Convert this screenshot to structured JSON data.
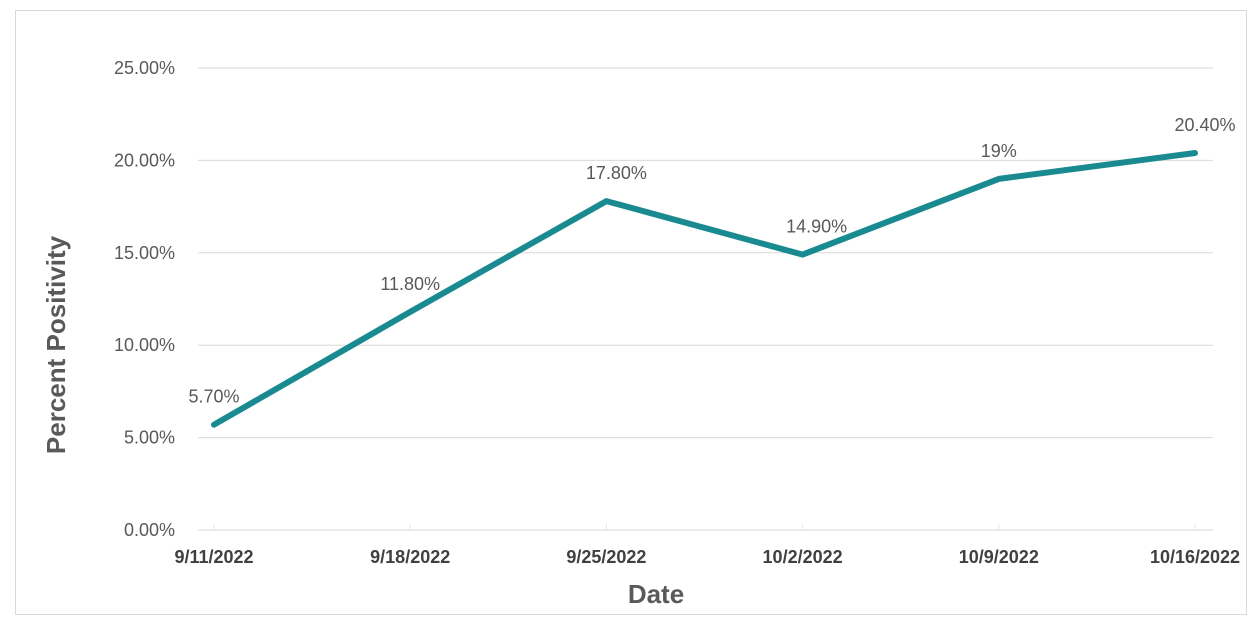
{
  "chart_data": {
    "type": "line",
    "title": "",
    "xlabel": "Date",
    "ylabel": "Percent Positivity",
    "categories": [
      "9/11/2022",
      "9/18/2022",
      "9/25/2022",
      "10/2/2022",
      "10/9/2022",
      "10/16/2022"
    ],
    "series": [
      {
        "values": [
          5.7,
          11.8,
          17.8,
          14.9,
          19.0,
          20.4
        ],
        "data_labels": [
          "5.70%",
          "11.80%",
          "17.80%",
          "14.90%",
          "19%",
          "20.40%"
        ],
        "color": "#1a8a91"
      }
    ],
    "ylim": [
      0,
      25
    ],
    "yticks": [
      0,
      5,
      10,
      15,
      20,
      25
    ],
    "ytick_labels": [
      "0.00%",
      "5.00%",
      "10.00%",
      "15.00%",
      "20.00%",
      "25.00%"
    ],
    "grid": "horizontal",
    "legend": "none",
    "colors": {
      "line": "#1a8a91",
      "grid": "#d9d9d9",
      "text": "#595959"
    }
  }
}
